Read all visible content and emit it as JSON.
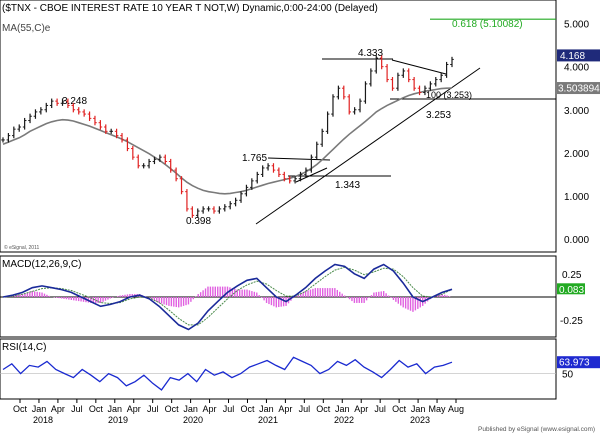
{
  "header": {
    "title": "($TNX - CBOE INTEREST RATE 10 YEAR T NOT,W) Dynamic,0:00-24:00 (Delayed)",
    "ma_label": "MA(55,C)e"
  },
  "watermark": "© eSignal, 2011",
  "footer": "Published by eSignal (www.esignal.com)",
  "chart_data": [
    {
      "type": "line",
      "panel": "price",
      "yaxis": {
        "ticks": [
          "0.000",
          "1.000",
          "2.000",
          "3.000",
          "4.000",
          "5.000"
        ],
        "range": [
          -0.3,
          5.5
        ]
      },
      "last_value": "4.168",
      "ma_value": "3.503894",
      "annotations": {
        "fib_label": "0.618 (5.10082)",
        "fib_level": 5.10082,
        "peak_2018": "3.248",
        "low_2020": "0.398",
        "high_2021": "1.765",
        "low_2021": "1.343",
        "high_2022": "4.333",
        "low_2023": "3.253",
        "box_label": "100 (3.253)"
      },
      "series": [
        {
          "name": "close",
          "values": [
            2.3,
            2.4,
            2.55,
            2.6,
            2.75,
            2.85,
            2.95,
            3.0,
            3.1,
            3.2,
            3.15,
            3.2,
            3.1,
            3.0,
            2.95,
            2.9,
            2.8,
            2.7,
            2.6,
            2.5,
            2.5,
            2.4,
            2.3,
            2.1,
            1.9,
            1.7,
            1.7,
            1.8,
            1.85,
            1.9,
            1.8,
            1.6,
            1.4,
            1.1,
            0.7,
            0.55,
            0.65,
            0.7,
            0.7,
            0.65,
            0.7,
            0.75,
            0.82,
            0.9,
            1.05,
            1.2,
            1.35,
            1.5,
            1.65,
            1.7,
            1.6,
            1.5,
            1.4,
            1.35,
            1.4,
            1.5,
            1.6,
            1.9,
            2.2,
            2.5,
            2.9,
            3.3,
            3.5,
            3.3,
            2.95,
            3.0,
            3.2,
            3.6,
            3.9,
            4.2,
            4.0,
            3.7,
            3.5,
            3.8,
            3.9,
            3.7,
            3.5,
            3.4,
            3.5,
            3.6,
            3.7,
            3.8,
            4.05,
            4.168
          ]
        },
        {
          "name": "MA(55,C)e",
          "values": [
            2.2,
            2.25,
            2.3,
            2.35,
            2.42,
            2.5,
            2.56,
            2.62,
            2.68,
            2.72,
            2.75,
            2.77,
            2.76,
            2.74,
            2.7,
            2.66,
            2.62,
            2.57,
            2.52,
            2.47,
            2.42,
            2.37,
            2.32,
            2.26,
            2.19,
            2.12,
            2.05,
            1.98,
            1.9,
            1.82,
            1.73,
            1.63,
            1.53,
            1.42,
            1.32,
            1.24,
            1.18,
            1.13,
            1.1,
            1.08,
            1.06,
            1.05,
            1.06,
            1.08,
            1.1,
            1.13,
            1.17,
            1.21,
            1.25,
            1.29,
            1.32,
            1.35,
            1.38,
            1.41,
            1.45,
            1.5,
            1.56,
            1.64,
            1.73,
            1.84,
            1.96,
            2.08,
            2.2,
            2.32,
            2.43,
            2.53,
            2.63,
            2.73,
            2.84,
            2.95,
            3.03,
            3.1,
            3.16,
            3.22,
            3.28,
            3.33,
            3.37,
            3.4,
            3.43,
            3.45,
            3.47,
            3.49,
            3.5,
            3.503894
          ]
        }
      ]
    },
    {
      "type": "line",
      "panel": "macd",
      "label": "MACD(12,26,9,C)",
      "yaxis": {
        "ticks": [
          "0.25",
          "-0.25"
        ],
        "range": [
          -0.42,
          0.42
        ]
      },
      "last_value": "0.083",
      "signal_last": "0.083",
      "series": [
        {
          "name": "macd",
          "values": [
            0.0,
            0.02,
            0.05,
            0.1,
            0.12,
            0.1,
            0.08,
            0.05,
            0.0,
            -0.05,
            -0.1,
            -0.08,
            -0.05,
            0.0,
            0.02,
            -0.02,
            -0.1,
            -0.2,
            -0.3,
            -0.35,
            -0.28,
            -0.15,
            -0.05,
            0.05,
            0.12,
            0.18,
            0.2,
            0.1,
            0.0,
            -0.05,
            0.02,
            0.1,
            0.2,
            0.28,
            0.35,
            0.33,
            0.25,
            0.2,
            0.3,
            0.35,
            0.28,
            0.15,
            0.0,
            -0.05,
            0.0,
            0.05,
            0.083
          ]
        },
        {
          "name": "signal",
          "values": [
            0.0,
            0.01,
            0.03,
            0.06,
            0.09,
            0.1,
            0.09,
            0.07,
            0.03,
            -0.01,
            -0.06,
            -0.07,
            -0.06,
            -0.02,
            0.0,
            -0.01,
            -0.06,
            -0.14,
            -0.23,
            -0.3,
            -0.3,
            -0.22,
            -0.12,
            -0.02,
            0.07,
            0.13,
            0.17,
            0.14,
            0.07,
            0.01,
            0.01,
            0.06,
            0.14,
            0.22,
            0.29,
            0.32,
            0.29,
            0.24,
            0.27,
            0.31,
            0.3,
            0.22,
            0.1,
            0.01,
            0.0,
            0.03,
            0.083
          ]
        }
      ]
    },
    {
      "type": "line",
      "panel": "rsi",
      "label": "RSI(14,C)",
      "yaxis": {
        "ticks": [
          "50"
        ],
        "range": [
          20,
          90
        ]
      },
      "last_value": "63.973",
      "series": [
        {
          "name": "rsi",
          "values": [
            55,
            62,
            50,
            60,
            58,
            65,
            55,
            50,
            45,
            55,
            48,
            40,
            50,
            45,
            35,
            40,
            48,
            38,
            30,
            45,
            42,
            50,
            40,
            55,
            48,
            52,
            45,
            50,
            58,
            62,
            66,
            60,
            55,
            70,
            65,
            60,
            50,
            55,
            65,
            60,
            67,
            58,
            52,
            45,
            55,
            66,
            58,
            62,
            50,
            58,
            60,
            63.973
          ]
        }
      ]
    }
  ],
  "xaxis": {
    "labels": [
      "Oct",
      "Jan",
      "Apr",
      "Jul",
      "Oct",
      "Jan",
      "Apr",
      "Jul",
      "Oct",
      "Jan",
      "Apr",
      "Jul",
      "Oct",
      "Jan",
      "Apr",
      "Jul",
      "Oct",
      "Jan",
      "Apr",
      "Jul",
      "Oct",
      "Jan",
      "May",
      "Aug"
    ],
    "years": [
      "2018",
      "2019",
      "2020",
      "2021",
      "2022",
      "2023"
    ]
  },
  "colors": {
    "up": "#1a1a1a",
    "down": "#e02020",
    "ma": "#7a7a7a",
    "macd": "#1a2a9a",
    "signal": "#4a8a4a",
    "histogram": "#e060e0",
    "rsi": "#1a2ad0",
    "fib": "#22aa22",
    "last_price_bg": "#1f2a7a",
    "ma_value_bg": "#7a7a7a",
    "macd_value_bg": "#22aa22",
    "rsi_value_bg": "#1f2ad0"
  }
}
